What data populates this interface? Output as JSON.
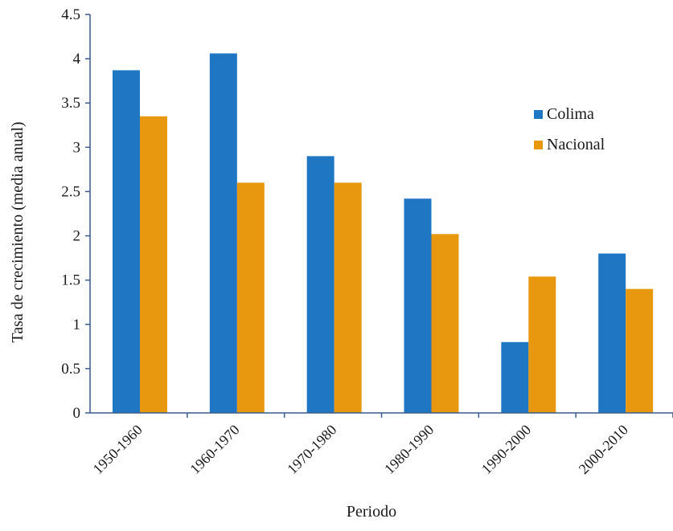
{
  "chart_data": {
    "type": "bar",
    "categories": [
      "1950-1960",
      "1960-1970",
      "1970-1980",
      "1980-1990",
      "1990-2000",
      "2000-2010"
    ],
    "series": [
      {
        "name": "Colima",
        "values": [
          3.87,
          4.06,
          2.9,
          2.42,
          0.8,
          1.8
        ]
      },
      {
        "name": "Nacional",
        "values": [
          3.35,
          2.6,
          2.6,
          2.02,
          1.54,
          1.4
        ]
      }
    ],
    "xlabel": "Periodo",
    "ylabel": "Tasa de crecimiento (media anual)",
    "ylim": [
      0,
      4.5
    ],
    "yticks": [
      "0",
      "0.5",
      "1",
      "1.5",
      "2",
      "2.5",
      "3",
      "3.5",
      "4",
      "4.5"
    ],
    "grid": false,
    "legend_position": "right",
    "colors": {
      "Colima": "#1f77c4",
      "Nacional": "#e8980f",
      "axis": "#3a5a8c"
    }
  }
}
